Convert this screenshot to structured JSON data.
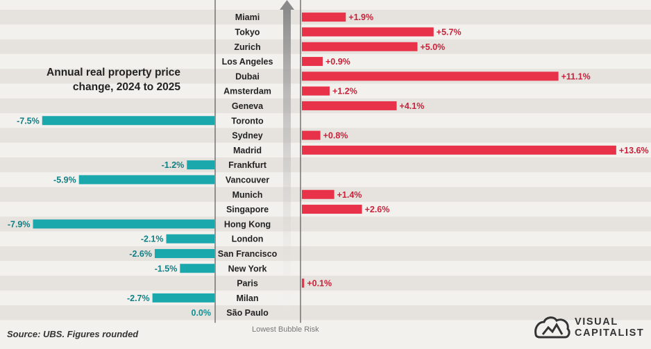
{
  "title_line1": "Annual real property price",
  "title_line2": "change, 2024 to 2025",
  "source": "Source: UBS. Figures rounded",
  "axis_bottom_label": "Lowest Bubble Risk",
  "brand_line1": "VISUAL",
  "brand_line2": "CAPITALIST",
  "colors": {
    "positive": "#e8324a",
    "negative": "#1aa8ad",
    "zero": "#1aa8ad",
    "background": "#f3f1ee",
    "band": "#e6e3de"
  },
  "chart_data": {
    "type": "bar",
    "orientation": "horizontal",
    "title": "Annual real property price change, 2024 to 2025",
    "xlabel": "",
    "ylabel": "",
    "unit": "%",
    "categories": [
      "Miami",
      "Tokyo",
      "Zurich",
      "Los Angeles",
      "Dubai",
      "Amsterdam",
      "Geneva",
      "Toronto",
      "Sydney",
      "Madrid",
      "Frankfurt",
      "Vancouver",
      "Munich",
      "Singapore",
      "Hong Kong",
      "London",
      "San Francisco",
      "New York",
      "Paris",
      "Milan",
      "São Paulo"
    ],
    "values": [
      1.9,
      5.7,
      5.0,
      0.9,
      11.1,
      1.2,
      4.1,
      -7.5,
      0.8,
      13.6,
      -1.2,
      -5.9,
      1.4,
      2.6,
      -7.9,
      -2.1,
      -2.6,
      -1.5,
      0.1,
      -2.7,
      0.0
    ],
    "labels": [
      "+1.9%",
      "+5.7%",
      "+5.0%",
      "+0.9%",
      "+11.1%",
      "+1.2%",
      "+4.1%",
      "-7.5%",
      "+0.8%",
      "+13.6%",
      "-1.2%",
      "-5.9%",
      "+1.4%",
      "+2.6%",
      "-7.9%",
      "-2.1%",
      "-2.6%",
      "-1.5%",
      "+0.1%",
      "-2.7%",
      "0.0%"
    ],
    "sort_note": "Ordered from highest to lowest bubble risk",
    "xlim": [
      -8,
      14
    ]
  }
}
